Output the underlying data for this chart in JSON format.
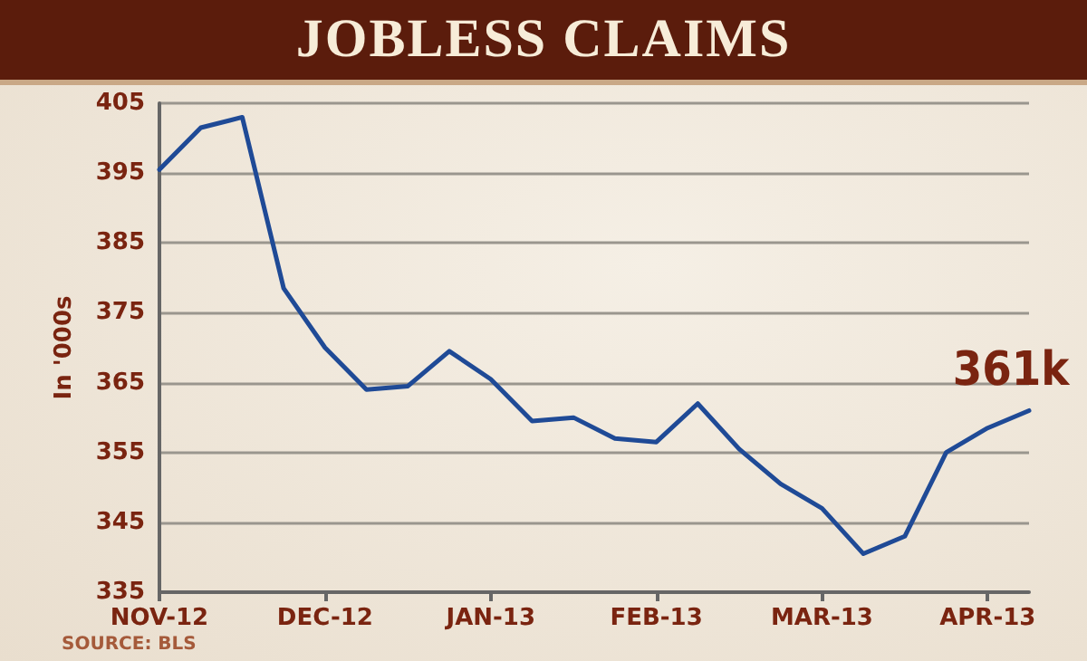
{
  "chart_data": {
    "type": "line",
    "title": "JOBLESS CLAIMS",
    "ylabel": "In '000s",
    "categories": [
      "NOV-12",
      null,
      null,
      null,
      "DEC-12",
      null,
      null,
      null,
      "JAN-13",
      null,
      null,
      null,
      "FEB-13",
      null,
      null,
      null,
      "MAR-13",
      null,
      null,
      null,
      "APR-13",
      null
    ],
    "series": [
      {
        "color": "#1f4a96",
        "values": [
          395.5,
          401.5,
          403,
          378.5,
          370,
          364,
          364.5,
          369.5,
          365.5,
          359.5,
          360,
          357,
          356.5,
          362,
          355.5,
          350.5,
          347,
          340.5,
          343,
          355,
          358.5,
          361
        ]
      }
    ],
    "ylim": [
      335,
      405
    ],
    "yticks": [
      335,
      345,
      355,
      365,
      375,
      385,
      395,
      405
    ],
    "grid": "y",
    "marker": "none",
    "line_style": "solid",
    "annotations": [
      {
        "text": "361k",
        "y": 361
      },
      "SOURCE: BLS"
    ]
  }
}
